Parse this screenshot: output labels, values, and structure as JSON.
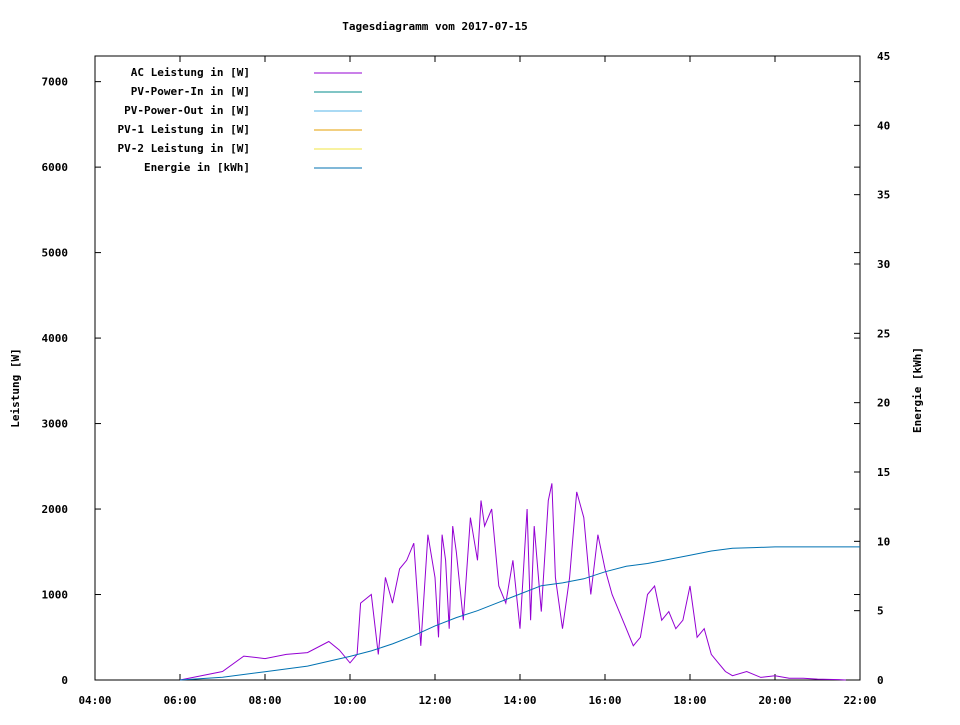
{
  "chart_data": {
    "type": "line",
    "title": "Tagesdiagramm vom 2017-07-15",
    "ylabel": "Leistung [W]",
    "y2label": "Energie [kWh]",
    "xlabel": "",
    "x_ticks": [
      "04:00",
      "06:00",
      "08:00",
      "10:00",
      "12:00",
      "14:00",
      "16:00",
      "18:00",
      "20:00",
      "22:00"
    ],
    "xlim": [
      "04:00",
      "22:00"
    ],
    "ylim": [
      0,
      7300
    ],
    "y_ticks": [
      0,
      1000,
      2000,
      3000,
      4000,
      5000,
      6000,
      7000
    ],
    "y2lim": [
      0,
      45
    ],
    "y2_ticks": [
      0,
      5,
      10,
      15,
      20,
      25,
      30,
      35,
      40,
      45
    ],
    "grid": false,
    "legend_position": "top-left",
    "series": [
      {
        "name": "AC Leistung in [W]",
        "color": "#9400d3",
        "axis": "left",
        "x": [
          "06:00",
          "06:30",
          "07:00",
          "07:30",
          "08:00",
          "08:30",
          "09:00",
          "09:30",
          "09:45",
          "10:00",
          "10:10",
          "10:15",
          "10:30",
          "10:40",
          "10:50",
          "11:00",
          "11:10",
          "11:20",
          "11:30",
          "11:40",
          "11:50",
          "12:00",
          "12:05",
          "12:10",
          "12:15",
          "12:20",
          "12:25",
          "12:30",
          "12:40",
          "12:50",
          "13:00",
          "13:05",
          "13:10",
          "13:20",
          "13:30",
          "13:40",
          "13:50",
          "14:00",
          "14:10",
          "14:15",
          "14:20",
          "14:30",
          "14:40",
          "14:45",
          "14:50",
          "15:00",
          "15:10",
          "15:20",
          "15:30",
          "15:40",
          "15:50",
          "16:00",
          "16:10",
          "16:20",
          "16:30",
          "16:40",
          "16:50",
          "17:00",
          "17:10",
          "17:20",
          "17:30",
          "17:40",
          "17:50",
          "18:00",
          "18:10",
          "18:20",
          "18:30",
          "18:40",
          "18:50",
          "19:00",
          "19:20",
          "19:40",
          "20:00",
          "20:20",
          "20:40",
          "21:00",
          "21:30",
          "21:40"
        ],
        "values": [
          0,
          50,
          100,
          280,
          250,
          300,
          320,
          450,
          350,
          200,
          300,
          900,
          1000,
          300,
          1200,
          900,
          1300,
          1400,
          1600,
          400,
          1700,
          1200,
          500,
          1700,
          1400,
          600,
          1800,
          1500,
          700,
          1900,
          1400,
          2100,
          1800,
          2000,
          1100,
          900,
          1400,
          600,
          2000,
          700,
          1800,
          800,
          2100,
          2300,
          1200,
          600,
          1200,
          2200,
          1900,
          1000,
          1700,
          1300,
          1000,
          800,
          600,
          400,
          500,
          1000,
          1100,
          700,
          800,
          600,
          700,
          1100,
          500,
          600,
          300,
          200,
          100,
          50,
          100,
          30,
          50,
          20,
          20,
          10,
          5,
          0
        ]
      },
      {
        "name": "PV-Power-In in [W]",
        "color": "#008b8b",
        "axis": "left",
        "x": [],
        "values": []
      },
      {
        "name": "PV-Power-Out in [W]",
        "color": "#56b4e9",
        "axis": "left",
        "x": [],
        "values": []
      },
      {
        "name": "PV-1 Leistung in [W]",
        "color": "#e69f00",
        "axis": "left",
        "x": [],
        "values": []
      },
      {
        "name": "PV-2 Leistung in [W]",
        "color": "#f0e442",
        "axis": "left",
        "x": [],
        "values": []
      },
      {
        "name": "Energie in [kWh]",
        "color": "#0072b2",
        "axis": "right",
        "x": [
          "06:00",
          "07:00",
          "08:00",
          "09:00",
          "10:00",
          "10:30",
          "11:00",
          "11:30",
          "12:00",
          "12:30",
          "13:00",
          "13:30",
          "14:00",
          "14:30",
          "15:00",
          "15:30",
          "16:00",
          "16:30",
          "17:00",
          "17:30",
          "18:00",
          "18:30",
          "19:00",
          "19:30",
          "20:00",
          "21:00",
          "22:00"
        ],
        "values": [
          0,
          0.2,
          0.6,
          1.0,
          1.7,
          2.1,
          2.6,
          3.2,
          3.9,
          4.5,
          5.0,
          5.6,
          6.2,
          6.8,
          7.0,
          7.3,
          7.8,
          8.2,
          8.4,
          8.7,
          9.0,
          9.3,
          9.5,
          9.55,
          9.6,
          9.6,
          9.6
        ]
      }
    ]
  }
}
